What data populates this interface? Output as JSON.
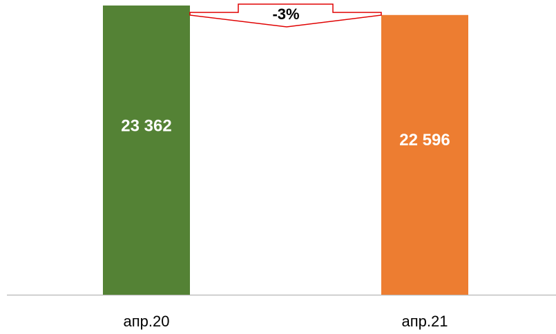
{
  "chart_data": {
    "type": "bar",
    "categories": [
      "апр.20",
      "апр.21"
    ],
    "series": [
      {
        "values": [
          23362,
          22596
        ],
        "value_labels": [
          "23 362",
          "22 596"
        ],
        "colors": [
          "#548235",
          "#ed7d31"
        ]
      }
    ],
    "annotation": "-3%"
  }
}
